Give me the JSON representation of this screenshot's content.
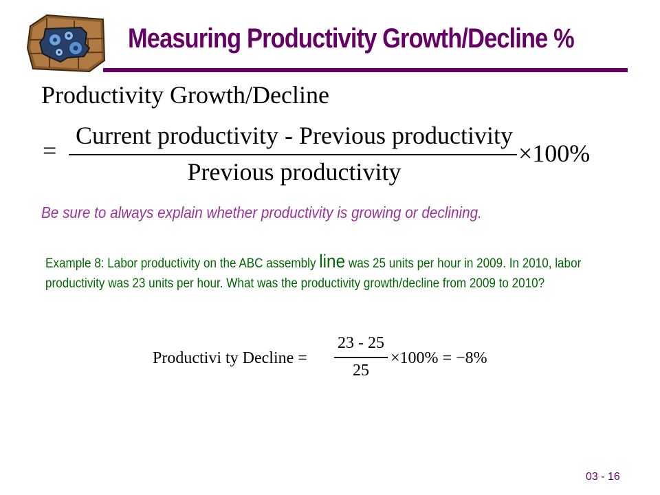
{
  "title": "Measuring Productivity Growth/Decline %",
  "formula": {
    "heading": "Productivity Growth/Decline",
    "equals": "=",
    "numerator": "Current productivity - Previous productivity",
    "denominator": "Previous productivity",
    "multiplier": "×100%"
  },
  "reminder": "Be sure to always explain whether productivity is growing or declining.",
  "example": {
    "text_before": "Example 8:  Labor productivity on the ABC assembly ",
    "emphasized_word": "line",
    "text_after": " was 25 units per hour in 2009.  In 2010, labor productivity was 23 units per hour.  What was the productivity growth/decline from 2009 to 2010?"
  },
  "calculation": {
    "label": "Productivi ty Decline =",
    "numerator": "23 - 25",
    "denominator": "25",
    "result": "×100% = −8%"
  },
  "page_number": "03 - 16",
  "colors": {
    "title": "#660066",
    "reminder": "#993399",
    "example": "#006600"
  },
  "logo_icon": "puzzle-brick-wall-logo"
}
